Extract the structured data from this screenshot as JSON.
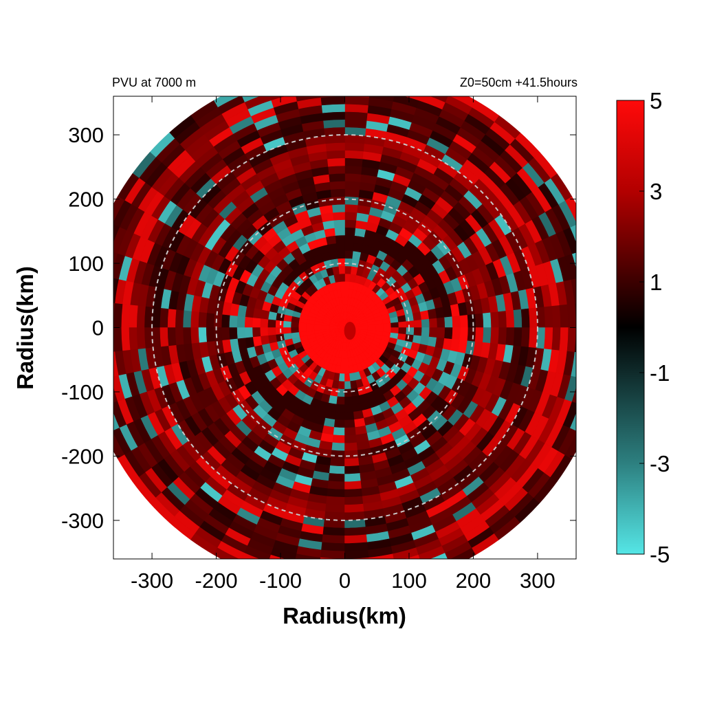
{
  "chart_data": {
    "type": "heatmap",
    "title_left": "PVU at  7000 m",
    "title_right": "Z0=50cm  +41.5hours",
    "xlabel": "Radius(km)",
    "ylabel": "Radius(km)",
    "xlim": [
      -360,
      360
    ],
    "ylim": [
      -360,
      360
    ],
    "x_ticks": [
      -300,
      -200,
      -100,
      0,
      100,
      200,
      300
    ],
    "y_ticks": [
      300,
      200,
      100,
      0,
      -100,
      -200,
      -300
    ],
    "domain_radius_km": 400,
    "reference_circles_km": [
      100,
      200,
      300
    ],
    "colorbar": {
      "min": -5,
      "max": 5,
      "tick_labels": [
        "5",
        "3",
        "1",
        "-1",
        "-3",
        "-5"
      ],
      "tick_values": [
        5,
        3,
        1,
        -1,
        -3,
        -5
      ],
      "colors": [
        {
          "value": -5,
          "color": "#55e6e6"
        },
        {
          "value": -3,
          "color": "#2d8080"
        },
        {
          "value": 0,
          "color": "#000000"
        },
        {
          "value": 3,
          "color": "#b30000"
        },
        {
          "value": 5,
          "color": "#ff0a0a"
        }
      ]
    },
    "features": {
      "core_radius_km": 70,
      "core_value": 5,
      "spiral_bands_value": 4,
      "negative_bands_value": -4
    }
  }
}
